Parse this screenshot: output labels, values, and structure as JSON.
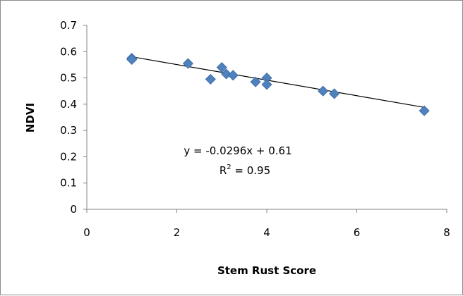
{
  "chart_data": {
    "type": "scatter",
    "title": "",
    "xlabel": "Stem Rust Score",
    "ylabel": "NDVI",
    "xlim": [
      0,
      8
    ],
    "ylim": [
      0,
      0.7
    ],
    "x_ticks": [
      "0",
      "2",
      "4",
      "6",
      "8"
    ],
    "y_ticks": [
      "0",
      "0.1",
      "0.2",
      "0.3",
      "0.4",
      "0.5",
      "0.6",
      "0.7"
    ],
    "grid": false,
    "marker": "diamond",
    "marker_color": "#4F81BD",
    "line_color": "#000000",
    "series": [
      {
        "points": [
          {
            "x": 1.0,
            "y": 0.575
          },
          {
            "x": 1.0,
            "y": 0.57
          },
          {
            "x": 2.25,
            "y": 0.555
          },
          {
            "x": 2.75,
            "y": 0.495
          },
          {
            "x": 3.0,
            "y": 0.54
          },
          {
            "x": 3.1,
            "y": 0.515
          },
          {
            "x": 3.25,
            "y": 0.51
          },
          {
            "x": 3.75,
            "y": 0.485
          },
          {
            "x": 4.0,
            "y": 0.5
          },
          {
            "x": 4.0,
            "y": 0.475
          },
          {
            "x": 5.25,
            "y": 0.45
          },
          {
            "x": 5.5,
            "y": 0.44
          },
          {
            "x": 7.5,
            "y": 0.375
          }
        ]
      }
    ],
    "trendline": {
      "slope": -0.0296,
      "intercept": 0.61,
      "x_range": [
        1.0,
        7.5
      ],
      "equation": "y = -0.0296x + 0.61",
      "r2_prefix": "R",
      "r2_sup": "2",
      "r2_suffix": " = 0.95"
    }
  }
}
